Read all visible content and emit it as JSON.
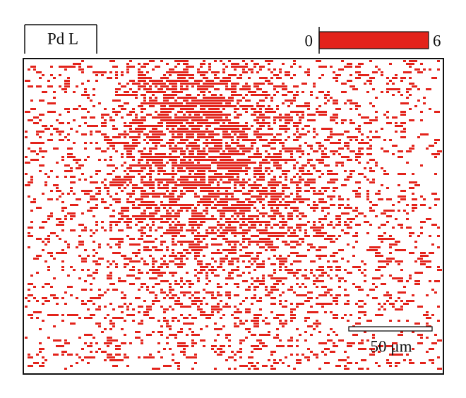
{
  "label": "Pd L",
  "color_scale": {
    "min": 0,
    "max": 6
  },
  "scale_bar": {
    "label": "50 μm"
  }
}
